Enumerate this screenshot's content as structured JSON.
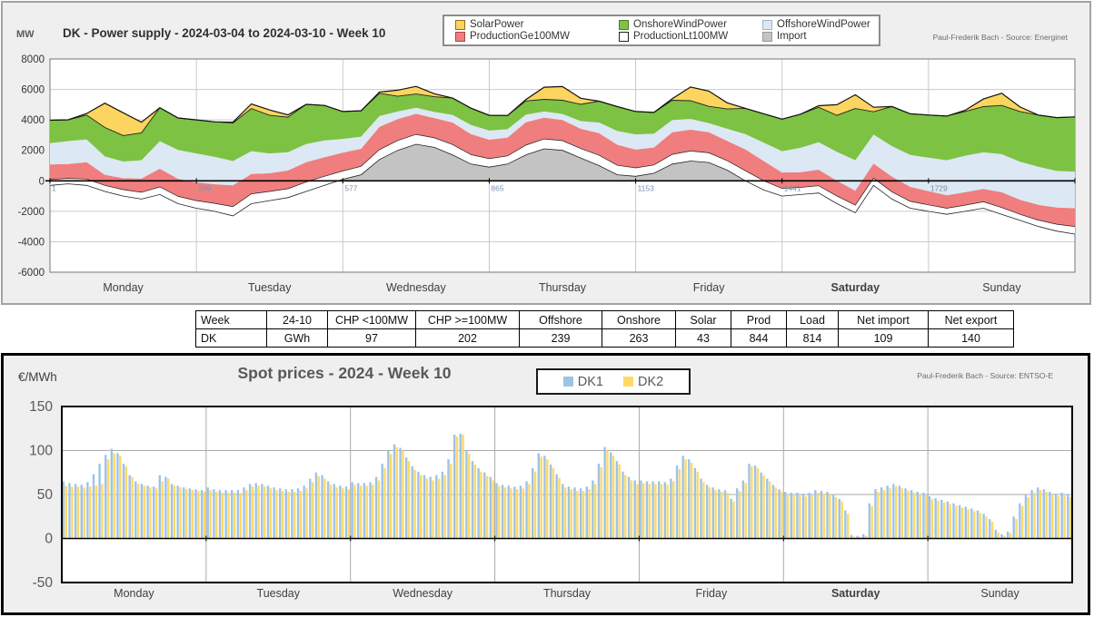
{
  "top_chart": {
    "title": "DK - Power supply - 2024-03-04 to 2024-03-10 - Week 10",
    "y_unit": "MW",
    "attribution": "Paul-Frederik Bach - Source: Energinet",
    "y_ticks": [
      8000,
      6000,
      4000,
      2000,
      0,
      -2000,
      -4000,
      -6000
    ],
    "x_ticks": [
      "1",
      "289",
      "577",
      "865",
      "1153",
      "1441",
      "1729"
    ],
    "days": [
      "Monday",
      "Tuesday",
      "Wednesday",
      "Thursday",
      "Friday",
      "Saturday",
      "Sunday"
    ],
    "bold_day": "Saturday",
    "legend": [
      {
        "label": "SolarPower",
        "color": "#FBD55F",
        "border": "#8a7020"
      },
      {
        "label": "OnshoreWindPower",
        "color": "#7DC243",
        "border": "#4d7a25"
      },
      {
        "label": "OffshoreWindPower",
        "color": "#DCE8F4",
        "border": "#9fb2c4"
      },
      {
        "label": "ProductionGe100MW",
        "color": "#F07E7E",
        "border": "#a34848"
      },
      {
        "label": "ProductionLt100MW",
        "color": "#FFFFFF",
        "border": "#222222"
      },
      {
        "label": "Import",
        "color": "#C3C3C3",
        "border": "#9a9a9a"
      }
    ]
  },
  "table": {
    "headers": [
      "Week",
      "24-10",
      "CHP <100MW",
      "CHP >=100MW",
      "Offshore",
      "Onshore",
      "Solar",
      "Prod",
      "Load",
      "Net import",
      "Net export"
    ],
    "rows": [
      [
        "DK",
        "GWh",
        "97",
        "202",
        "239",
        "263",
        "43",
        "844",
        "814",
        "109",
        "140"
      ]
    ]
  },
  "bottom_chart": {
    "title": "Spot prices - 2024 - Week 10",
    "y_unit": "€/MWh",
    "attribution": "Paul-Frederik Bach - Source: ENTSO-E",
    "y_ticks": [
      150,
      100,
      50,
      0,
      -50
    ],
    "days": [
      "Monday",
      "Tuesday",
      "Wednesday",
      "Thursday",
      "Friday",
      "Saturday",
      "Sunday"
    ],
    "bold_day": "Saturday",
    "legend": [
      {
        "label": "DK1",
        "color": "#9DC3E6"
      },
      {
        "label": "DK2",
        "color": "#FFD966"
      }
    ]
  },
  "chart_data": [
    {
      "id": "power_supply",
      "type": "stacked-area",
      "title": "DK - Power supply - 2024-03-04 to 2024-03-10 - Week 10",
      "ylabel": "MW",
      "ylim": [
        -6000,
        8000
      ],
      "x_unit": "hour of week (Mon 00:00 = 0), sampled every 3 h; axis tick labels are quarter-hour indices 1-2016",
      "x_step_hours": 3,
      "x_range_hours": [
        0,
        168
      ],
      "grid": true,
      "legend_position": "top",
      "stack_order": [
        "Import",
        "ProductionLt100MW",
        "ProductionGe100MW",
        "OffshoreWindPower",
        "OnshoreWindPower",
        "SolarPower"
      ],
      "series": [
        {
          "name": "Import",
          "color": "#C3C3C3",
          "values": [
            -300,
            -200,
            -300,
            -700,
            -1000,
            -1200,
            -900,
            -1500,
            -1800,
            -2000,
            -2300,
            -1500,
            -1300,
            -1100,
            -700,
            -300,
            100,
            400,
            1400,
            2000,
            2400,
            2200,
            1700,
            1100,
            900,
            1100,
            1700,
            2100,
            2000,
            1500,
            1000,
            400,
            300,
            500,
            1100,
            1300,
            1200,
            700,
            0,
            -600,
            -1000,
            -900,
            -800,
            -1500,
            -2100,
            -300,
            -1200,
            -1800,
            -2000,
            -2200,
            -2000,
            -1800,
            -2200,
            -2600,
            -3000,
            -3300,
            -3500
          ]
        },
        {
          "name": "ProductionLt100MW",
          "color": "#FFFFFF",
          "values": [
            380,
            360,
            420,
            400,
            420,
            450,
            500,
            480,
            500,
            520,
            600,
            650,
            600,
            580,
            620,
            600,
            550,
            550,
            650,
            650,
            650,
            620,
            680,
            620,
            550,
            540,
            640,
            650,
            640,
            620,
            680,
            620,
            550,
            540,
            640,
            660,
            640,
            620,
            660,
            600,
            500,
            470,
            480,
            500,
            500,
            480,
            480,
            450,
            420,
            400,
            400,
            420,
            450,
            400,
            420,
            450,
            500
          ]
        },
        {
          "name": "ProductionGe100MW",
          "color": "#F07E7E",
          "values": [
            1000,
            950,
            1100,
            700,
            750,
            900,
            1200,
            1150,
            1200,
            1250,
            1400,
            1300,
            1200,
            1200,
            1300,
            1250,
            1200,
            1150,
            1500,
            1400,
            1350,
            1300,
            1450,
            1350,
            1250,
            1200,
            1500,
            1400,
            1350,
            1300,
            1450,
            1350,
            1200,
            1150,
            1450,
            1400,
            1350,
            1300,
            1400,
            1300,
            1050,
            1000,
            1050,
            1000,
            950,
            950,
            1000,
            950,
            900,
            850,
            850,
            850,
            1000,
            950,
            1000,
            1100,
            1200
          ]
        },
        {
          "name": "OffshoreWindPower",
          "color": "#DCE8F4",
          "values": [
            1400,
            1500,
            1500,
            1200,
            1100,
            1200,
            1800,
            1900,
            1900,
            1800,
            1600,
            1500,
            1300,
            1200,
            1200,
            1100,
            900,
            800,
            700,
            500,
            400,
            400,
            500,
            600,
            600,
            550,
            500,
            400,
            400,
            500,
            700,
            900,
            1000,
            900,
            800,
            700,
            600,
            800,
            1000,
            1200,
            1400,
            1600,
            1800,
            1900,
            2000,
            1900,
            2000,
            2100,
            2200,
            2300,
            2400,
            2400,
            2500,
            2500,
            2500,
            2400,
            2400
          ]
        },
        {
          "name": "OnshoreWindPower",
          "color": "#7DC243",
          "values": [
            1500,
            1400,
            1600,
            1900,
            1700,
            1800,
            2200,
            2100,
            2200,
            2300,
            2500,
            2800,
            2500,
            2300,
            2600,
            2300,
            1800,
            1700,
            1500,
            1000,
            900,
            1000,
            1100,
            1100,
            1000,
            900,
            900,
            800,
            900,
            1100,
            1400,
            1600,
            1500,
            1400,
            1300,
            1200,
            1100,
            1300,
            1700,
            1900,
            2100,
            2200,
            2300,
            2400,
            3400,
            1500,
            2600,
            2700,
            2800,
            2900,
            2900,
            3000,
            3200,
            3300,
            3400,
            3500,
            3600
          ]
        },
        {
          "name": "SolarPower",
          "color": "#FBD55F",
          "values": [
            0,
            0,
            100,
            1600,
            1500,
            700,
            0,
            0,
            0,
            0,
            50,
            300,
            350,
            150,
            0,
            0,
            0,
            0,
            80,
            400,
            500,
            200,
            0,
            0,
            0,
            0,
            100,
            800,
            900,
            400,
            0,
            0,
            0,
            0,
            100,
            900,
            1000,
            400,
            0,
            0,
            0,
            0,
            100,
            700,
            900,
            300,
            0,
            0,
            0,
            0,
            80,
            500,
            800,
            300,
            0,
            0,
            0
          ]
        }
      ]
    },
    {
      "id": "spot_prices",
      "type": "bar",
      "title": "Spot prices - 2024 - Week 10",
      "ylabel": "€/MWh",
      "ylim": [
        -50,
        150
      ],
      "x_unit": "hour of week, Monday 00:00 to Sunday 23:00",
      "grid": true,
      "legend_position": "top",
      "series": [
        {
          "name": "DK1",
          "color": "#9DC3E6",
          "values": [
            65,
            63,
            62,
            61,
            64,
            73,
            85,
            95,
            102,
            97,
            85,
            72,
            65,
            62,
            60,
            59,
            72,
            70,
            62,
            60,
            58,
            57,
            56,
            55,
            58,
            56,
            55,
            55,
            55,
            55,
            58,
            62,
            63,
            62,
            60,
            58,
            57,
            56,
            56,
            57,
            60,
            68,
            75,
            72,
            65,
            62,
            60,
            59,
            64,
            63,
            63,
            64,
            70,
            85,
            100,
            107,
            103,
            92,
            82,
            76,
            72,
            70,
            72,
            76,
            90,
            118,
            119,
            100,
            88,
            80,
            75,
            70,
            63,
            61,
            60,
            59,
            60,
            65,
            80,
            97,
            94,
            84,
            73,
            62,
            59,
            58,
            57,
            59,
            66,
            85,
            104,
            98,
            88,
            76,
            70,
            66,
            66,
            65,
            65,
            65,
            64,
            68,
            83,
            94,
            90,
            80,
            68,
            61,
            58,
            56,
            55,
            45,
            57,
            66,
            85,
            83,
            75,
            68,
            61,
            56,
            53,
            52,
            52,
            51,
            52,
            55,
            54,
            53,
            50,
            45,
            32,
            4,
            3,
            5,
            40,
            56,
            58,
            60,
            62,
            60,
            57,
            55,
            53,
            52,
            48,
            46,
            44,
            42,
            40,
            38,
            36,
            34,
            32,
            28,
            22,
            10,
            5,
            8,
            25,
            40,
            50,
            55,
            58,
            56,
            53,
            51,
            52,
            50
          ]
        },
        {
          "name": "DK2",
          "color": "#FFD966",
          "values": [
            60,
            59,
            59,
            58,
            59,
            60,
            62,
            90,
            97,
            94,
            82,
            70,
            62,
            60,
            58,
            57,
            65,
            68,
            60,
            58,
            56,
            55,
            54,
            53,
            55,
            53,
            52,
            52,
            52,
            52,
            55,
            59,
            60,
            59,
            57,
            55,
            54,
            53,
            53,
            54,
            57,
            64,
            71,
            68,
            61,
            58,
            57,
            56,
            61,
            60,
            60,
            61,
            66,
            80,
            96,
            104,
            100,
            88,
            78,
            72,
            68,
            66,
            68,
            72,
            85,
            116,
            118,
            96,
            84,
            76,
            71,
            66,
            60,
            58,
            57,
            56,
            57,
            62,
            76,
            93,
            90,
            80,
            69,
            58,
            56,
            54,
            54,
            56,
            62,
            81,
            100,
            94,
            84,
            72,
            66,
            62,
            63,
            62,
            62,
            62,
            61,
            65,
            79,
            90,
            86,
            76,
            64,
            58,
            55,
            53,
            52,
            42,
            54,
            63,
            82,
            80,
            72,
            65,
            58,
            53,
            50,
            49,
            49,
            48,
            49,
            52,
            51,
            50,
            47,
            42,
            28,
            2,
            2,
            3,
            37,
            53,
            55,
            57,
            59,
            57,
            54,
            52,
            50,
            49,
            45,
            43,
            41,
            39,
            37,
            35,
            33,
            31,
            29,
            25,
            19,
            7,
            3,
            6,
            22,
            37,
            47,
            52,
            55,
            53,
            50,
            48,
            49,
            47
          ]
        }
      ]
    }
  ]
}
